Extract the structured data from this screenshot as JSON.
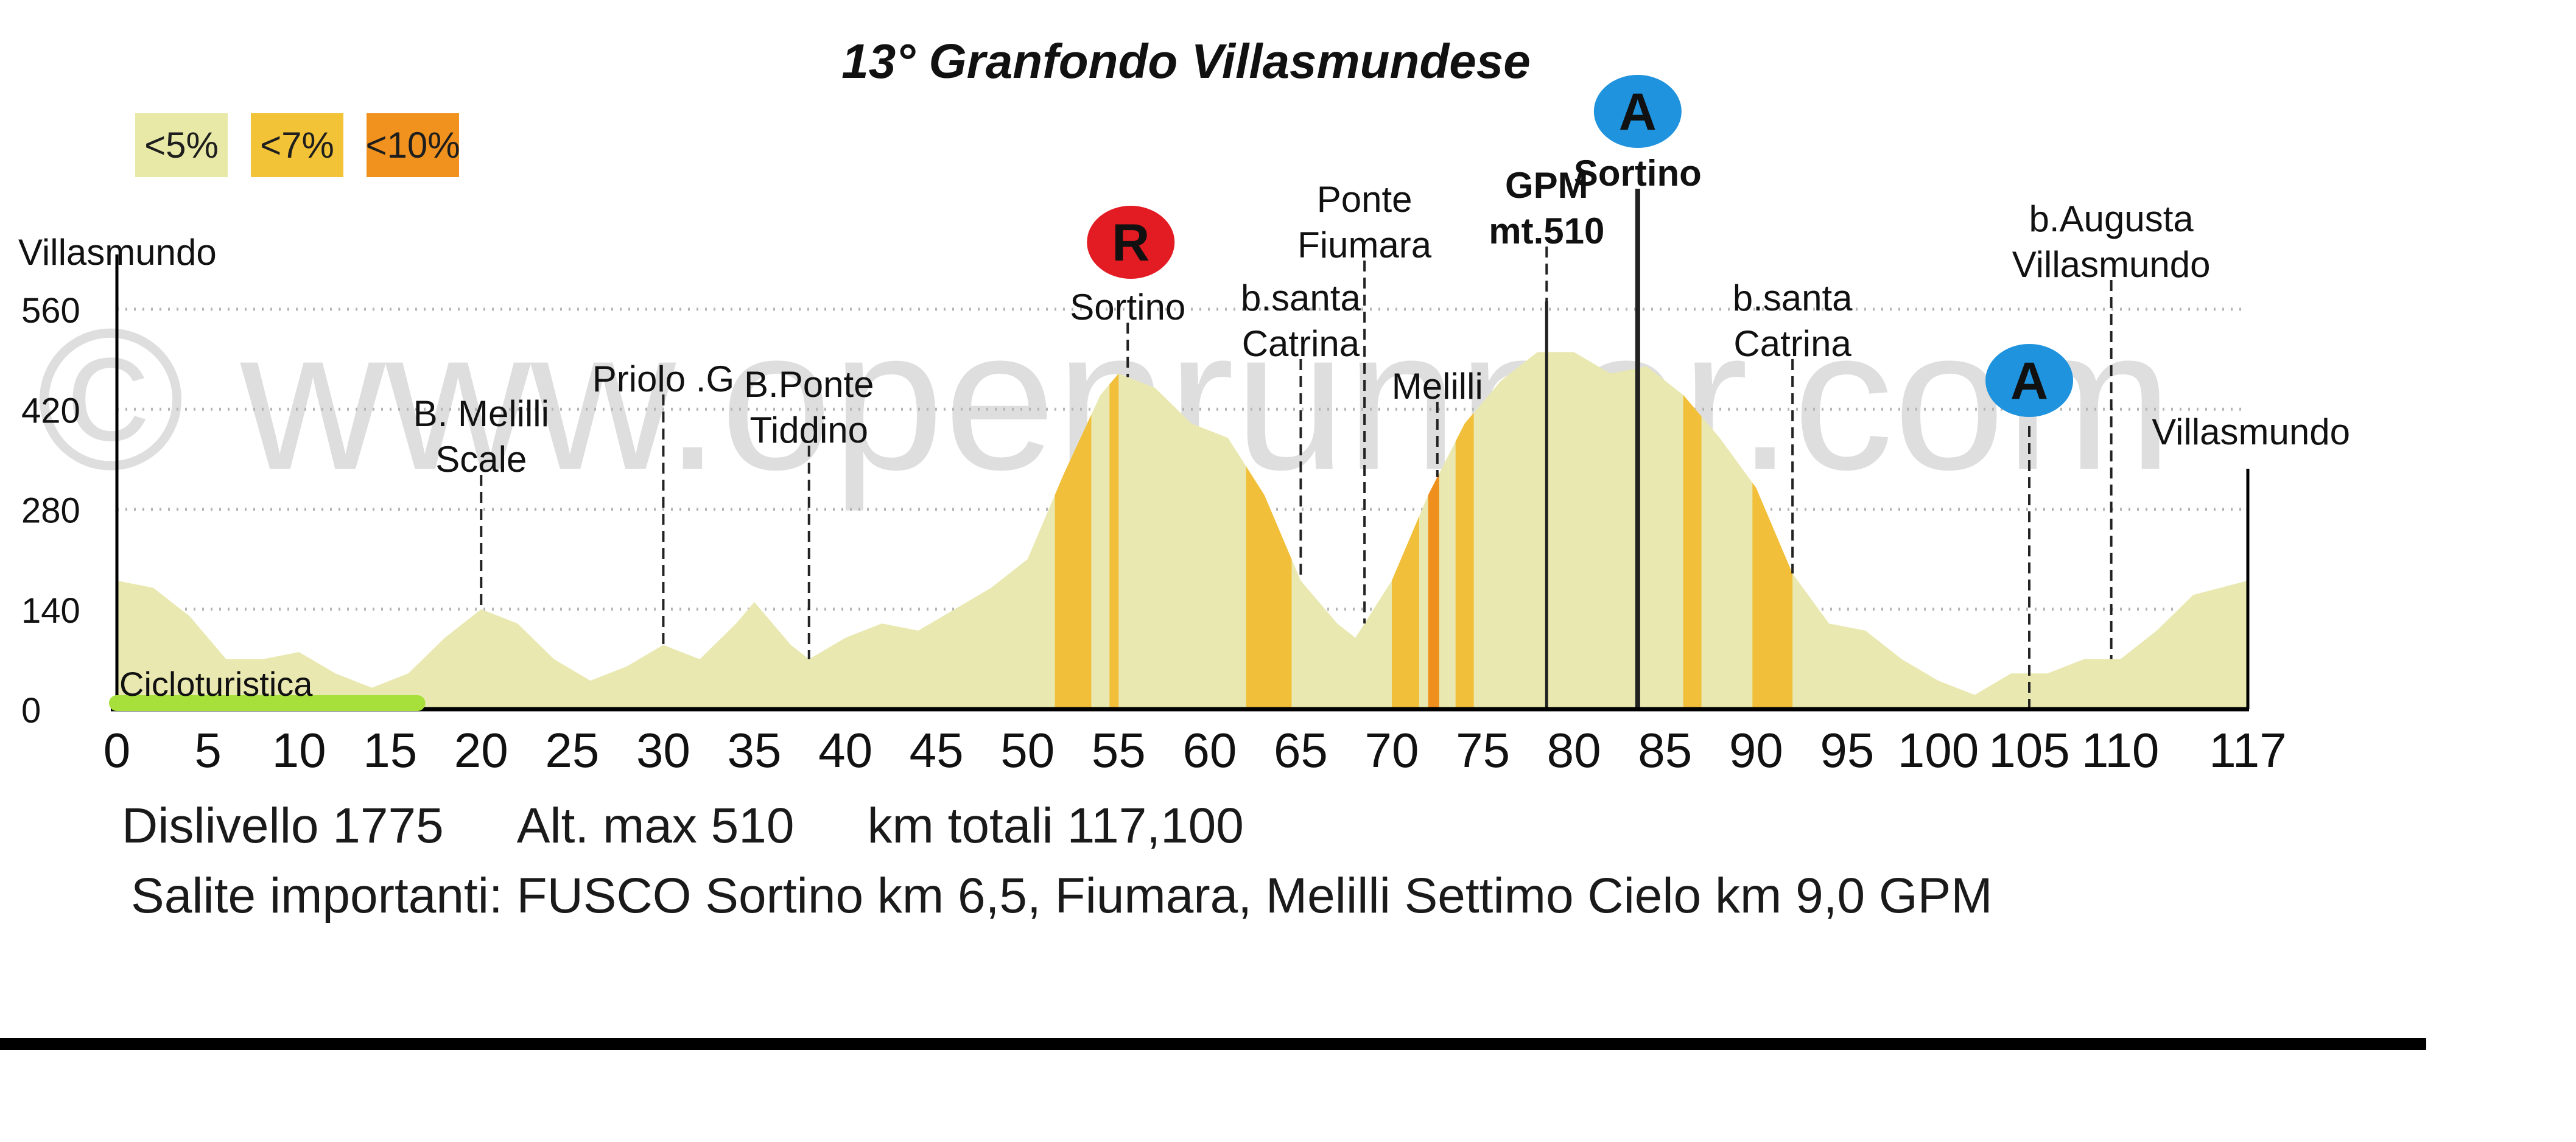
{
  "chart_data": {
    "type": "area",
    "title": "13° Granfondo Villasmundese",
    "xlabel": "",
    "ylabel": "",
    "xlim": [
      0,
      117
    ],
    "ylim": [
      0,
      560
    ],
    "x_ticks": [
      {
        "value": 0,
        "label": "0"
      },
      {
        "value": 5,
        "label": "5"
      },
      {
        "value": 10,
        "label": "10"
      },
      {
        "value": 15,
        "label": "15"
      },
      {
        "value": 20,
        "label": "20"
      },
      {
        "value": 25,
        "label": "25"
      },
      {
        "value": 30,
        "label": "30"
      },
      {
        "value": 35,
        "label": "35"
      },
      {
        "value": 40,
        "label": "40"
      },
      {
        "value": 45,
        "label": "45"
      },
      {
        "value": 50,
        "label": "50"
      },
      {
        "value": 55,
        "label": "55"
      },
      {
        "value": 60,
        "label": "60"
      },
      {
        "value": 65,
        "label": "65"
      },
      {
        "value": 70,
        "label": "70"
      },
      {
        "value": 75,
        "label": "75"
      },
      {
        "value": 80,
        "label": "80"
      },
      {
        "value": 85,
        "label": "85"
      },
      {
        "value": 90,
        "label": "90"
      },
      {
        "value": 95,
        "label": "95"
      },
      {
        "value": 100,
        "label": "100"
      },
      {
        "value": 105,
        "label": "105"
      },
      {
        "value": 110,
        "label": "110"
      },
      {
        "value": 117,
        "label": "117"
      }
    ],
    "y_ticks": [
      {
        "value": 0,
        "label": "0"
      },
      {
        "value": 140,
        "label": "140"
      },
      {
        "value": 280,
        "label": "280"
      },
      {
        "value": 420,
        "label": "420"
      },
      {
        "value": 560,
        "label": "560"
      }
    ],
    "grid": "horizontal dotted at 140, 280, 420, 560",
    "series": [
      {
        "values": [
          [
            0,
            180
          ],
          [
            2,
            170
          ],
          [
            4,
            130
          ],
          [
            6,
            70
          ],
          [
            8,
            70
          ],
          [
            10,
            80
          ],
          [
            12,
            50
          ],
          [
            14,
            30
          ],
          [
            16,
            50
          ],
          [
            18,
            100
          ],
          [
            20,
            140
          ],
          [
            22,
            120
          ],
          [
            24,
            70
          ],
          [
            26,
            40
          ],
          [
            28,
            60
          ],
          [
            30,
            90
          ],
          [
            32,
            70
          ],
          [
            34,
            120
          ],
          [
            35,
            150
          ],
          [
            37,
            90
          ],
          [
            38,
            70
          ],
          [
            40,
            100
          ],
          [
            42,
            120
          ],
          [
            44,
            110
          ],
          [
            46,
            140
          ],
          [
            48,
            170
          ],
          [
            50,
            210
          ],
          [
            52,
            330
          ],
          [
            54,
            440
          ],
          [
            55,
            470
          ],
          [
            57,
            450
          ],
          [
            59,
            400
          ],
          [
            61,
            380
          ],
          [
            63,
            300
          ],
          [
            65,
            180
          ],
          [
            67,
            120
          ],
          [
            68,
            100
          ],
          [
            70,
            180
          ],
          [
            72,
            300
          ],
          [
            74,
            400
          ],
          [
            76,
            460
          ],
          [
            78,
            500
          ],
          [
            80,
            500
          ],
          [
            82,
            470
          ],
          [
            84,
            480
          ],
          [
            86,
            440
          ],
          [
            88,
            380
          ],
          [
            90,
            310
          ],
          [
            92,
            190
          ],
          [
            94,
            120
          ],
          [
            96,
            110
          ],
          [
            98,
            70
          ],
          [
            100,
            40
          ],
          [
            102,
            20
          ],
          [
            104,
            50
          ],
          [
            106,
            50
          ],
          [
            108,
            70
          ],
          [
            110,
            70
          ],
          [
            112,
            110
          ],
          [
            114,
            160
          ],
          [
            117,
            180
          ]
        ]
      }
    ],
    "gradient_bands": [
      {
        "from": 51.5,
        "to": 53.5,
        "class": "<7%"
      },
      {
        "from": 54.5,
        "to": 55,
        "class": "<7%"
      },
      {
        "from": 62,
        "to": 64.5,
        "class": "<7%"
      },
      {
        "from": 70,
        "to": 71.5,
        "class": "<7%"
      },
      {
        "from": 72,
        "to": 72.6,
        "class": "<10%"
      },
      {
        "from": 73.5,
        "to": 74.5,
        "class": "<7%"
      },
      {
        "from": 86,
        "to": 87,
        "class": "<7%"
      },
      {
        "from": 89.8,
        "to": 92,
        "class": "<7%"
      }
    ],
    "waypoints": [
      {
        "km": 0,
        "name": "Villasmundo",
        "badge": ""
      },
      {
        "km": 20,
        "name": "B. Melilli\nScale",
        "badge": ""
      },
      {
        "km": 30,
        "name": "Priolo .G",
        "badge": ""
      },
      {
        "km": 38,
        "name": "B.Ponte\nTiddino",
        "badge": ""
      },
      {
        "km": 55.5,
        "name": "Sortino",
        "badge": "R"
      },
      {
        "km": 65,
        "name": "b.santa\nCatrina",
        "badge": ""
      },
      {
        "km": 68.5,
        "name": "Ponte\nFiumara",
        "badge": ""
      },
      {
        "km": 72.5,
        "name": "Melilli",
        "badge": ""
      },
      {
        "km": 78.5,
        "name": "GPM\nmt.510",
        "badge": ""
      },
      {
        "km": 83.5,
        "name": "Sortino",
        "badge": "A"
      },
      {
        "km": 92,
        "name": "b.santa\nCatrina",
        "badge": ""
      },
      {
        "km": 105,
        "name": "",
        "badge": "A"
      },
      {
        "km": 109.5,
        "name": "b.Augusta\nVillasmundo",
        "badge": ""
      },
      {
        "km": 117,
        "name": "Villasmundo",
        "badge": ""
      }
    ],
    "annotation": {
      "text": "Cicloturistica",
      "from_km": 0,
      "to_km": 16.5
    }
  },
  "legend": [
    {
      "label": "<5%",
      "color": "#e8e9a7"
    },
    {
      "label": "<7%",
      "color": "#f2c337"
    },
    {
      "label": "<10%",
      "color": "#f1921f"
    }
  ],
  "colors": {
    "fill": "#e9e8b0",
    "band7": "#f2bf3a",
    "band10": "#ef8f1e",
    "cyclo": "#a7e03a",
    "badge_R": "#e31b23",
    "badge_A": "#1f93dd"
  },
  "watermark": "© www.openrunner.com",
  "stats": {
    "dislivello": "Dislivello 1775",
    "alt_max": "Alt. max 510",
    "km_totali": "km totali 117,100"
  },
  "climbs": "Salite importanti: FUSCO Sortino km 6,5, Fiumara, Melilli Settimo Cielo km 9,0 GPM"
}
